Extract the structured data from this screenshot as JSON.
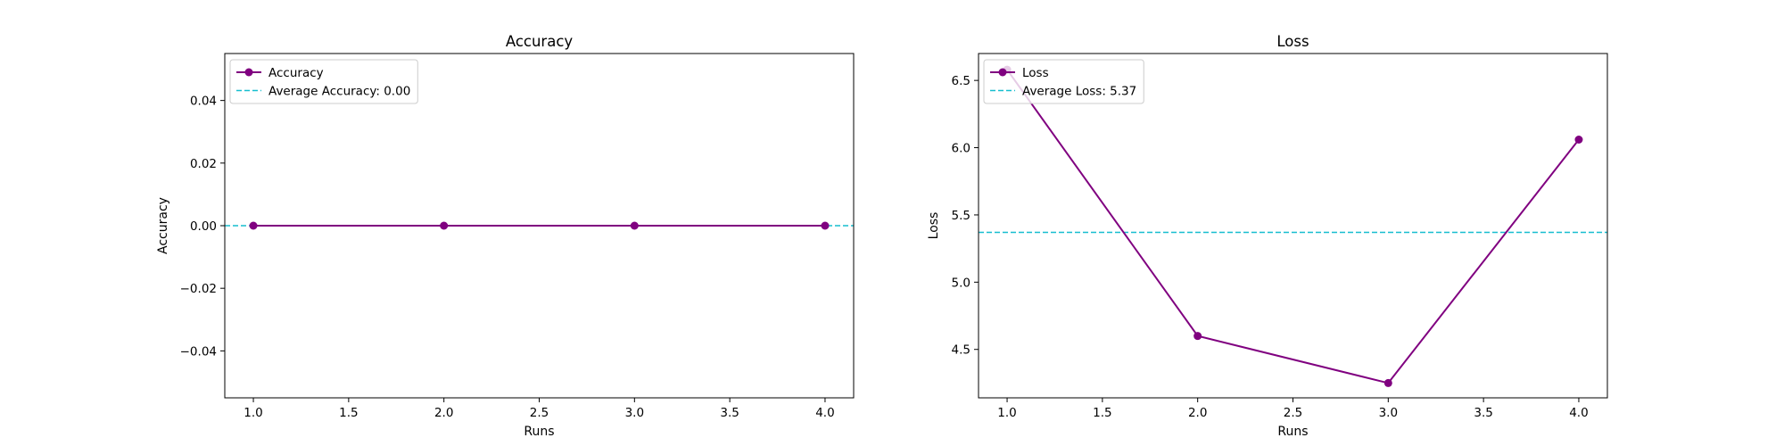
{
  "chart_data": [
    {
      "type": "line",
      "title": "Accuracy",
      "xlabel": "Runs",
      "ylabel": "Accuracy",
      "xlim": [
        0.85,
        4.15
      ],
      "ylim": [
        -0.055,
        0.055
      ],
      "x": [
        1,
        2,
        3,
        4
      ],
      "xticks": [
        "1.0",
        "1.5",
        "2.0",
        "2.5",
        "3.0",
        "3.5",
        "4.0"
      ],
      "yticks": [
        "−0.04",
        "−0.02",
        "0.00",
        "0.02",
        "0.04"
      ],
      "series": [
        {
          "name": "Accuracy",
          "values": [
            0,
            0,
            0,
            0
          ],
          "color": "#800080",
          "style": "solid",
          "marker": "circle"
        }
      ],
      "hlines": [
        {
          "name": "Average Accuracy: 0.00",
          "value": 0.0,
          "color": "#17becf",
          "style": "dashed"
        }
      ],
      "grid": false,
      "legend_position": "upper-left"
    },
    {
      "type": "line",
      "title": "Loss",
      "xlabel": "Runs",
      "ylabel": "Loss",
      "xlim": [
        0.85,
        4.15
      ],
      "ylim": [
        4.14,
        6.7
      ],
      "x": [
        1,
        2,
        3,
        4
      ],
      "xticks": [
        "1.0",
        "1.5",
        "2.0",
        "2.5",
        "3.0",
        "3.5",
        "4.0"
      ],
      "yticks": [
        "4.5",
        "5.0",
        "5.5",
        "6.0",
        "6.5"
      ],
      "series": [
        {
          "name": "Loss",
          "values": [
            6.58,
            4.6,
            4.25,
            6.06
          ],
          "color": "#800080",
          "style": "solid",
          "marker": "circle"
        }
      ],
      "hlines": [
        {
          "name": "Average Loss: 5.37",
          "value": 5.37,
          "color": "#17becf",
          "style": "dashed"
        }
      ],
      "grid": false,
      "legend_position": "upper-left"
    }
  ]
}
